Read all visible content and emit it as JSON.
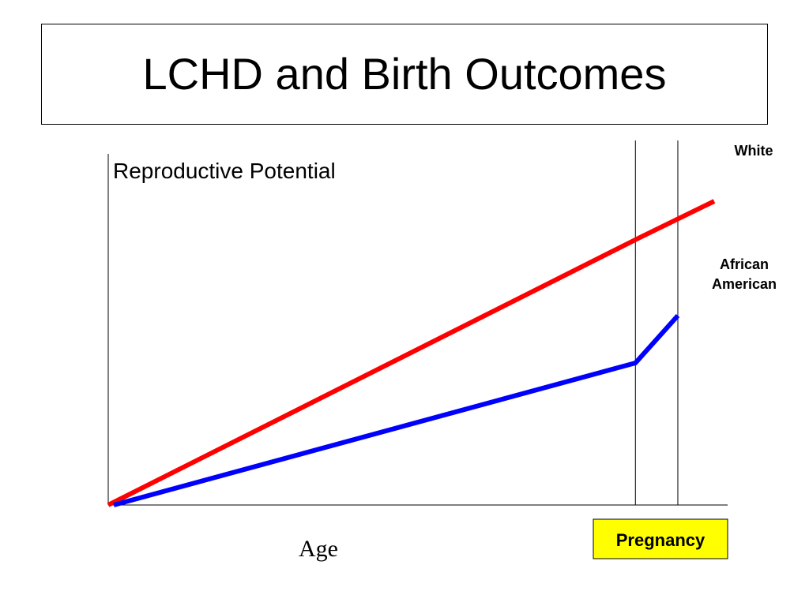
{
  "slide": {
    "title": "LCHD and Birth Outcomes"
  },
  "chart_data": {
    "type": "line",
    "ylabel": "Reproductive Potential",
    "xlabel": "Age",
    "phase_label": "Pregnancy",
    "phase_label_bg": "#ffff00",
    "series": [
      {
        "name": "White",
        "color": "#ff0000",
        "points": [
          [
            0,
            0
          ],
          [
            0.88,
            0.68
          ],
          [
            1.0,
            0.77
          ]
        ]
      },
      {
        "name": "African American",
        "name_lines": [
          "African",
          "American"
        ],
        "color": "#0000ff",
        "points": [
          [
            0,
            0
          ],
          [
            0.87,
            0.36
          ],
          [
            0.94,
            0.48
          ]
        ]
      }
    ],
    "markers": [
      {
        "x": 0.87
      },
      {
        "x": 0.94
      }
    ],
    "grid": false
  }
}
